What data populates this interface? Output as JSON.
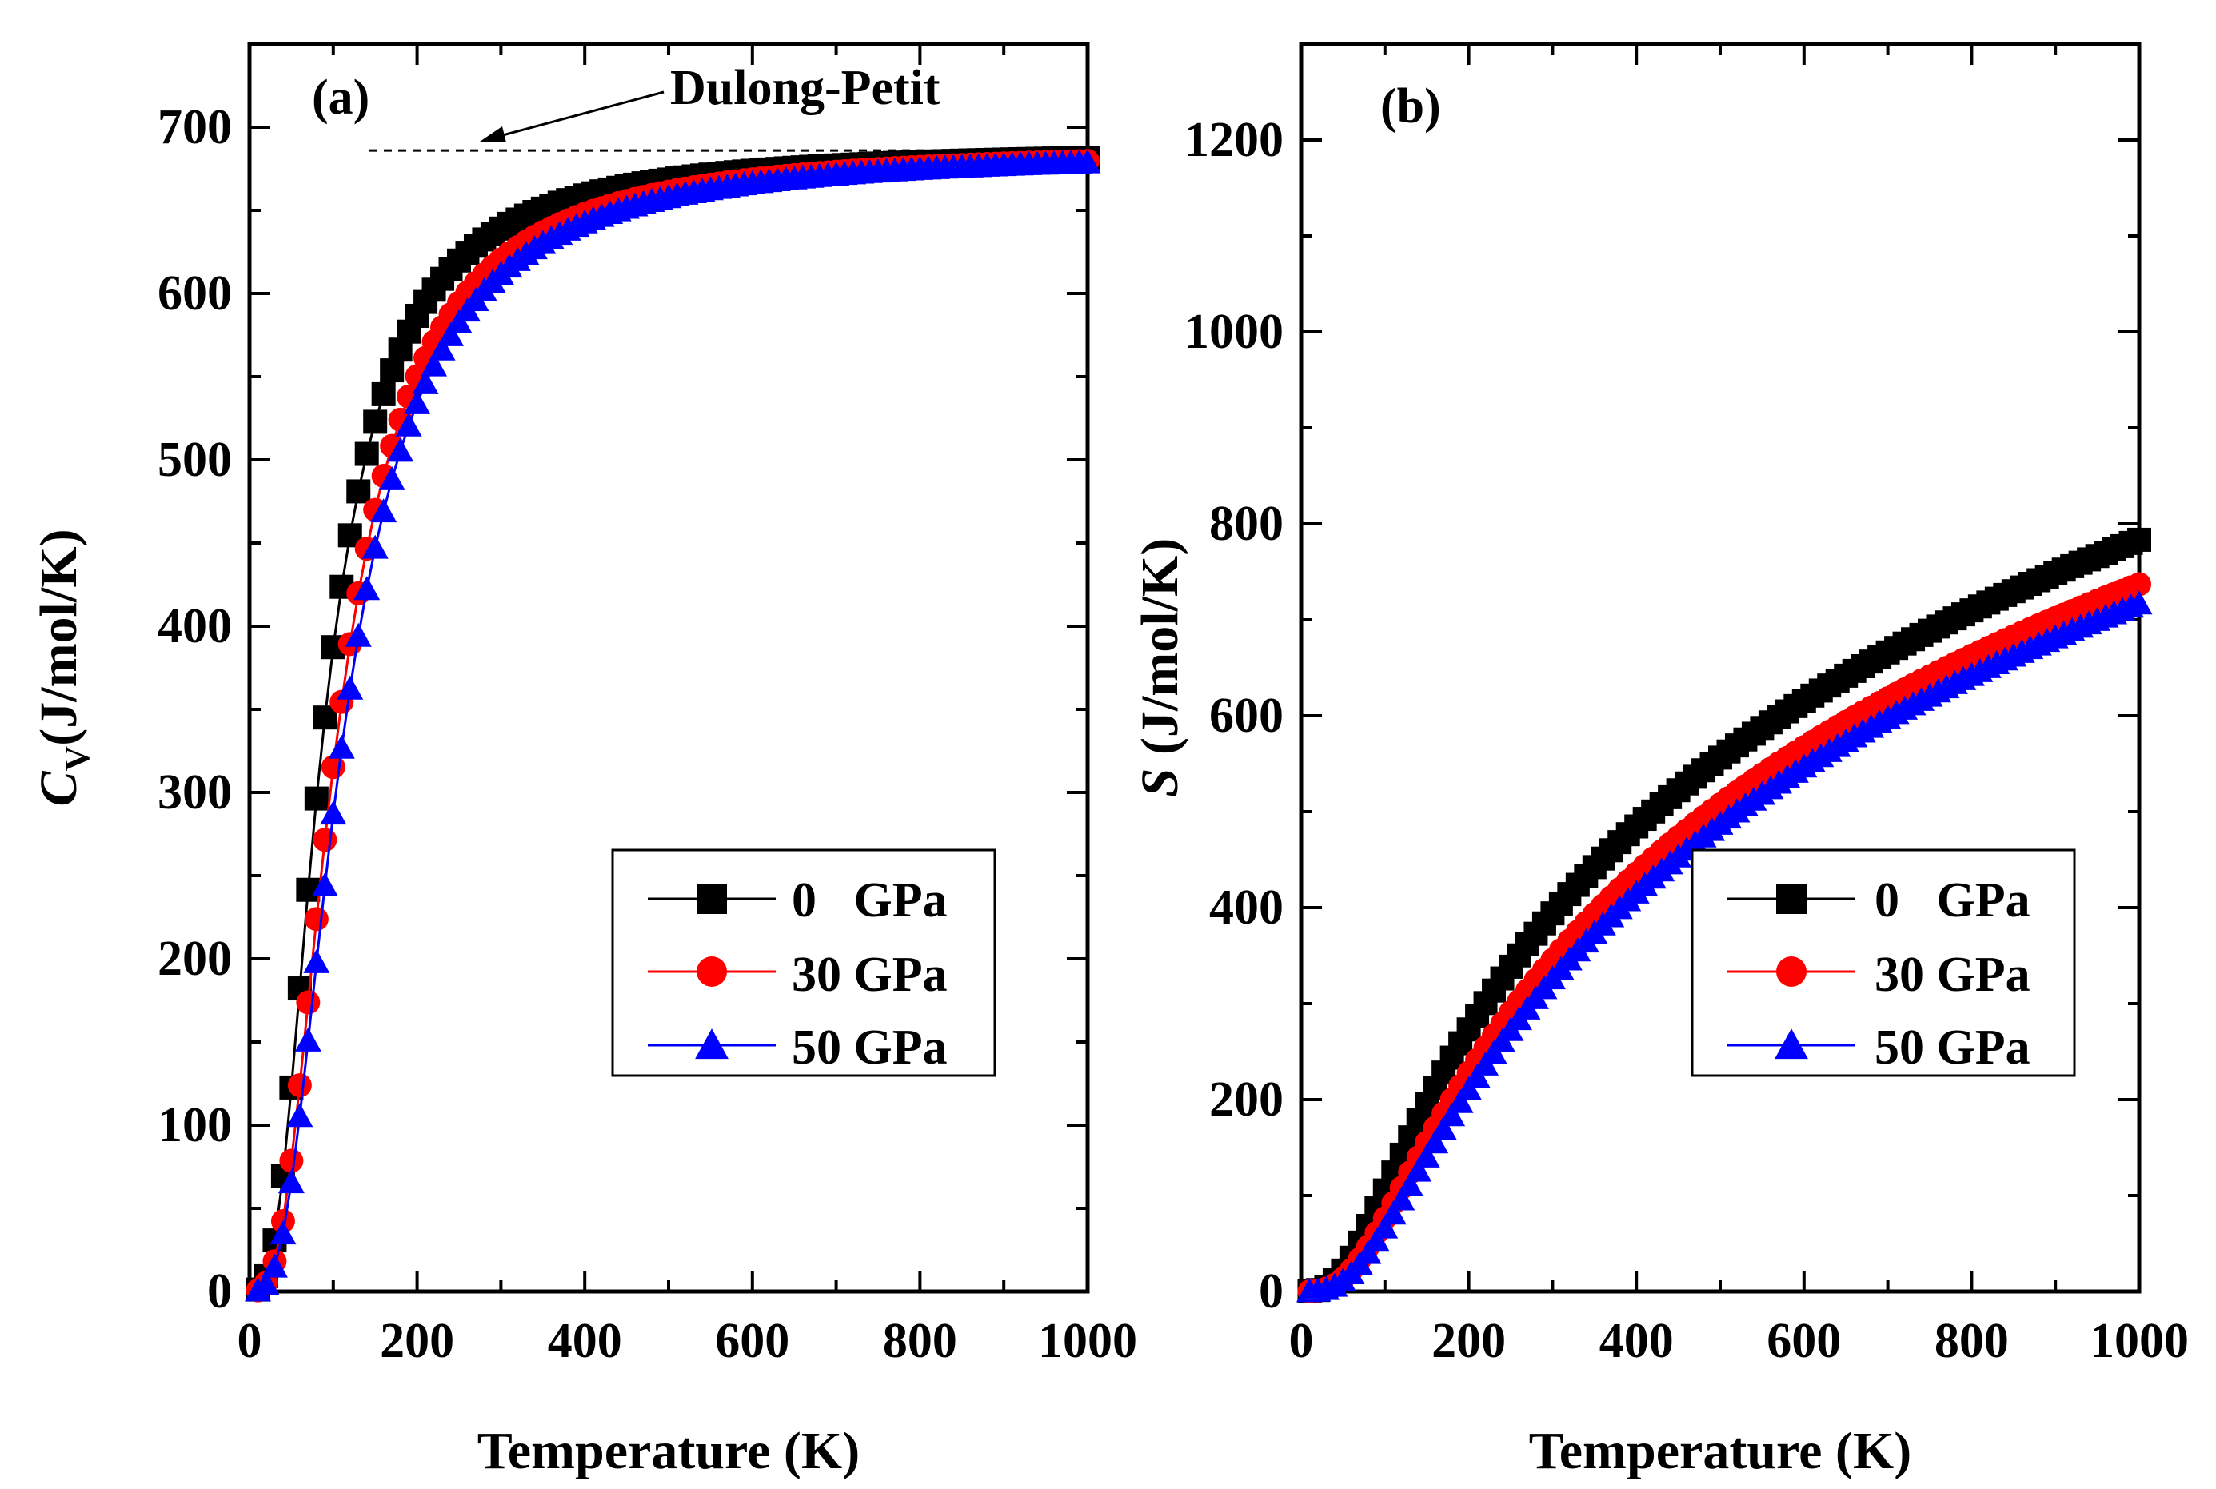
{
  "chart_data": [
    {
      "type": "scatter",
      "panel_label": "(a)",
      "xlabel": "Temperature (K)",
      "ylabel_main": "C",
      "ylabel_sub": "V",
      "ylabel_rest": "(J/mol/K)",
      "xlim": [
        0,
        1000
      ],
      "ylim": [
        0,
        750
      ],
      "xticks": [
        0,
        200,
        400,
        600,
        800,
        1000
      ],
      "yticks": [
        0,
        100,
        200,
        300,
        400,
        500,
        600,
        700
      ],
      "reference_line": {
        "label": "Dulong-Petit",
        "y": 686
      },
      "legend_position": "center-right",
      "series": [
        {
          "name": "0   GPa",
          "color": "#000000",
          "marker": "square",
          "theta": 360,
          "scale": 686
        },
        {
          "name": "30 GPa",
          "color": "#ff0000",
          "marker": "circle",
          "theta": 430,
          "scale": 686
        },
        {
          "name": "50 GPa",
          "color": "#0000ff",
          "marker": "triangle",
          "theta": 460,
          "scale": 686
        }
      ]
    },
    {
      "type": "scatter",
      "panel_label": "(b)",
      "xlabel": "Temperature (K)",
      "ylabel_main": "S",
      "ylabel_rest": " (J/mol/K)",
      "xlim": [
        0,
        1000
      ],
      "ylim": [
        0,
        1300
      ],
      "xticks": [
        0,
        200,
        400,
        600,
        800,
        1000
      ],
      "yticks": [
        0,
        200,
        400,
        600,
        800,
        1000,
        1200
      ],
      "legend_position": "center-right",
      "series": [
        {
          "name": "0   GPa",
          "color": "#000000",
          "marker": "square",
          "theta": 360,
          "scale": 1.48
        },
        {
          "name": "30 GPa",
          "color": "#ff0000",
          "marker": "circle",
          "theta": 430,
          "scale": 1.505
        },
        {
          "name": "50 GPa",
          "color": "#0000ff",
          "marker": "triangle",
          "theta": 460,
          "scale": 1.51
        }
      ]
    }
  ]
}
